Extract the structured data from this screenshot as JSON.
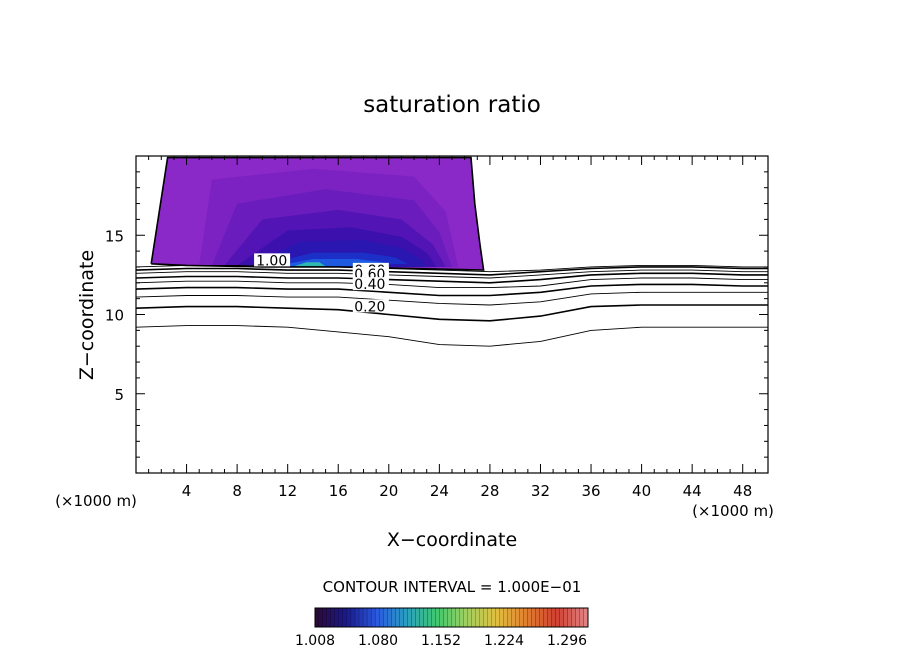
{
  "chart_data": {
    "type": "contour",
    "title": "saturation ratio",
    "xlabel": "X−coordinate",
    "ylabel": "Z−coordinate",
    "x_unit_label": "(×1000 m)",
    "y_unit_label": "(×1000 m)",
    "xlim": [
      0,
      50
    ],
    "ylim": [
      0,
      20
    ],
    "x_ticks": [
      4,
      8,
      12,
      16,
      20,
      24,
      28,
      32,
      36,
      40,
      44,
      48
    ],
    "x_tick_labels": [
      "4",
      "8",
      "12",
      "16",
      "20",
      "24",
      "28",
      "32",
      "36",
      "40",
      "44",
      "48"
    ],
    "y_ticks": [
      5,
      10,
      15
    ],
    "y_tick_labels": [
      "5",
      "10",
      "15"
    ],
    "contour_interval_text": "CONTOUR INTERVAL = 1.000E−01",
    "contour_labels": [
      "1.00",
      "0.80",
      "0.60",
      "0.40",
      "0.20"
    ],
    "colorbar": {
      "ticks": [
        "1.008",
        "1.080",
        "1.152",
        "1.224",
        "1.296"
      ],
      "min": 1.008,
      "max": 1.32,
      "colors": [
        "#2a0a3a",
        "#1a1a8a",
        "#2a5ae0",
        "#2aa0c0",
        "#40c870",
        "#a0d060",
        "#e0c040",
        "#e08030",
        "#d04030",
        "#e08080"
      ]
    },
    "contour_lines": [
      {
        "level": 0.1,
        "points": [
          [
            0,
            9.2
          ],
          [
            4,
            9.3
          ],
          [
            8,
            9.3
          ],
          [
            12,
            9.2
          ],
          [
            16,
            8.9
          ],
          [
            20,
            8.6
          ],
          [
            24,
            8.1
          ],
          [
            28,
            8.0
          ],
          [
            32,
            8.3
          ],
          [
            36,
            9.0
          ],
          [
            40,
            9.2
          ],
          [
            44,
            9.2
          ],
          [
            48,
            9.2
          ],
          [
            50,
            9.2
          ]
        ]
      },
      {
        "level": 0.2,
        "points": [
          [
            0,
            10.4
          ],
          [
            4,
            10.5
          ],
          [
            8,
            10.5
          ],
          [
            12,
            10.4
          ],
          [
            16,
            10.3
          ],
          [
            20,
            10.0
          ],
          [
            24,
            9.7
          ],
          [
            28,
            9.6
          ],
          [
            32,
            9.9
          ],
          [
            36,
            10.5
          ],
          [
            40,
            10.6
          ],
          [
            44,
            10.6
          ],
          [
            48,
            10.6
          ],
          [
            50,
            10.6
          ]
        ]
      },
      {
        "level": 0.3,
        "points": [
          [
            0,
            11.1
          ],
          [
            4,
            11.2
          ],
          [
            8,
            11.2
          ],
          [
            12,
            11.1
          ],
          [
            16,
            11.1
          ],
          [
            20,
            10.9
          ],
          [
            24,
            10.7
          ],
          [
            28,
            10.6
          ],
          [
            32,
            10.8
          ],
          [
            36,
            11.3
          ],
          [
            40,
            11.4
          ],
          [
            44,
            11.4
          ],
          [
            48,
            11.4
          ],
          [
            50,
            11.4
          ]
        ]
      },
      {
        "level": 0.4,
        "points": [
          [
            0,
            11.6
          ],
          [
            4,
            11.7
          ],
          [
            8,
            11.7
          ],
          [
            12,
            11.6
          ],
          [
            16,
            11.6
          ],
          [
            20,
            11.4
          ],
          [
            24,
            11.2
          ],
          [
            28,
            11.2
          ],
          [
            32,
            11.4
          ],
          [
            36,
            11.8
          ],
          [
            40,
            11.9
          ],
          [
            44,
            11.9
          ],
          [
            48,
            11.8
          ],
          [
            50,
            11.8
          ]
        ]
      },
      {
        "level": 0.5,
        "points": [
          [
            0,
            12.0
          ],
          [
            4,
            12.1
          ],
          [
            8,
            12.1
          ],
          [
            12,
            12.0
          ],
          [
            16,
            12.0
          ],
          [
            20,
            11.9
          ],
          [
            24,
            11.7
          ],
          [
            28,
            11.7
          ],
          [
            32,
            11.8
          ],
          [
            36,
            12.2
          ],
          [
            40,
            12.3
          ],
          [
            44,
            12.3
          ],
          [
            48,
            12.2
          ],
          [
            50,
            12.2
          ]
        ]
      },
      {
        "level": 0.6,
        "points": [
          [
            0,
            12.3
          ],
          [
            4,
            12.4
          ],
          [
            8,
            12.4
          ],
          [
            12,
            12.3
          ],
          [
            16,
            12.3
          ],
          [
            20,
            12.2
          ],
          [
            24,
            12.1
          ],
          [
            28,
            12.0
          ],
          [
            32,
            12.2
          ],
          [
            36,
            12.5
          ],
          [
            40,
            12.6
          ],
          [
            44,
            12.6
          ],
          [
            48,
            12.5
          ],
          [
            50,
            12.5
          ]
        ]
      },
      {
        "level": 0.7,
        "points": [
          [
            0,
            12.6
          ],
          [
            4,
            12.7
          ],
          [
            8,
            12.7
          ],
          [
            12,
            12.6
          ],
          [
            16,
            12.6
          ],
          [
            20,
            12.5
          ],
          [
            24,
            12.4
          ],
          [
            28,
            12.3
          ],
          [
            32,
            12.5
          ],
          [
            36,
            12.7
          ],
          [
            40,
            12.8
          ],
          [
            44,
            12.8
          ],
          [
            48,
            12.7
          ],
          [
            50,
            12.7
          ]
        ]
      },
      {
        "level": 0.8,
        "points": [
          [
            0,
            12.8
          ],
          [
            4,
            12.9
          ],
          [
            8,
            12.9
          ],
          [
            12,
            12.8
          ],
          [
            16,
            12.8
          ],
          [
            20,
            12.7
          ],
          [
            24,
            12.6
          ],
          [
            28,
            12.5
          ],
          [
            32,
            12.7
          ],
          [
            36,
            12.9
          ],
          [
            40,
            13.0
          ],
          [
            44,
            13.0
          ],
          [
            48,
            12.9
          ],
          [
            50,
            12.9
          ]
        ]
      },
      {
        "level": 0.9,
        "points": [
          [
            0,
            13.0
          ],
          [
            4,
            13.1
          ],
          [
            8,
            13.1
          ],
          [
            12,
            13.0
          ],
          [
            16,
            13.0
          ],
          [
            20,
            12.9
          ],
          [
            24,
            12.8
          ],
          [
            28,
            12.7
          ],
          [
            32,
            12.8
          ],
          [
            36,
            13.0
          ],
          [
            40,
            13.1
          ],
          [
            44,
            13.1
          ],
          [
            48,
            13.0
          ],
          [
            50,
            13.0
          ]
        ]
      }
    ],
    "supersaturated_region": {
      "boundary": [
        [
          1.2,
          13.2
        ],
        [
          2.5,
          19.9
        ],
        [
          26.5,
          19.9
        ],
        [
          26.8,
          17.0
        ],
        [
          27.2,
          14.5
        ],
        [
          27.5,
          12.8
        ],
        [
          22,
          12.9
        ],
        [
          16,
          13.0
        ],
        [
          10,
          13.0
        ],
        [
          4,
          13.1
        ],
        [
          1.2,
          13.2
        ]
      ],
      "fills": [
        {
          "value": 1.01,
          "color": "#8a28c8",
          "points": [
            [
              1.2,
              13.2
            ],
            [
              2.5,
              19.9
            ],
            [
              26.5,
              19.9
            ],
            [
              26.8,
              17.0
            ],
            [
              27.2,
              14.5
            ],
            [
              27.5,
              12.8
            ],
            [
              22,
              12.9
            ],
            [
              16,
              13.0
            ],
            [
              10,
              13.0
            ],
            [
              4,
              13.1
            ]
          ]
        },
        {
          "value": 1.02,
          "color": "#7c22c2",
          "points": [
            [
              5,
              13.1
            ],
            [
              6,
              18.5
            ],
            [
              14,
              19.2
            ],
            [
              22,
              18.7
            ],
            [
              24.5,
              16.5
            ],
            [
              25.5,
              13.0
            ],
            [
              20,
              13.0
            ],
            [
              12,
              13.0
            ]
          ]
        },
        {
          "value": 1.03,
          "color": "#6a1cbc",
          "points": [
            [
              6,
              13.1
            ],
            [
              8,
              17.0
            ],
            [
              15,
              17.9
            ],
            [
              22,
              17.2
            ],
            [
              24,
              15.2
            ],
            [
              25,
              13.0
            ],
            [
              20,
              13.0
            ],
            [
              12,
              13.0
            ]
          ]
        },
        {
          "value": 1.045,
          "color": "#5214b4",
          "points": [
            [
              7,
              13.1
            ],
            [
              10,
              16.0
            ],
            [
              16,
              16.6
            ],
            [
              21,
              16.0
            ],
            [
              23.5,
              14.4
            ],
            [
              24.5,
              13.0
            ],
            [
              18,
              13.0
            ]
          ]
        },
        {
          "value": 1.06,
          "color": "#3c10ac",
          "points": [
            [
              8,
              13.1
            ],
            [
              12,
              15.3
            ],
            [
              17,
              15.5
            ],
            [
              21,
              14.9
            ],
            [
              23,
              13.9
            ],
            [
              23.8,
              13.0
            ],
            [
              16,
              13.0
            ]
          ]
        },
        {
          "value": 1.08,
          "color": "#2a16b0",
          "points": [
            [
              9,
              13.1
            ],
            [
              13,
              14.6
            ],
            [
              18,
              14.7
            ],
            [
              21,
              14.2
            ],
            [
              22.5,
              13.5
            ],
            [
              23,
              13.0
            ],
            [
              15,
              13.0
            ]
          ]
        },
        {
          "value": 1.11,
          "color": "#1c30c8",
          "points": [
            [
              10,
              13.1
            ],
            [
              14,
              13.9
            ],
            [
              18,
              13.9
            ],
            [
              20.5,
              13.6
            ],
            [
              21.5,
              13.2
            ],
            [
              14,
              13.0
            ]
          ]
        },
        {
          "value": 1.15,
          "color": "#1e5ae0",
          "points": [
            [
              11,
              13.05
            ],
            [
              14,
              13.5
            ],
            [
              17.5,
              13.5
            ],
            [
              19.5,
              13.3
            ],
            [
              20,
              13.05
            ]
          ]
        },
        {
          "value": 1.22,
          "color": "#30b8b0",
          "points": [
            [
              12.5,
              13.05
            ],
            [
              13.5,
              13.3
            ],
            [
              14.5,
              13.3
            ],
            [
              15,
              13.05
            ]
          ]
        }
      ]
    }
  }
}
